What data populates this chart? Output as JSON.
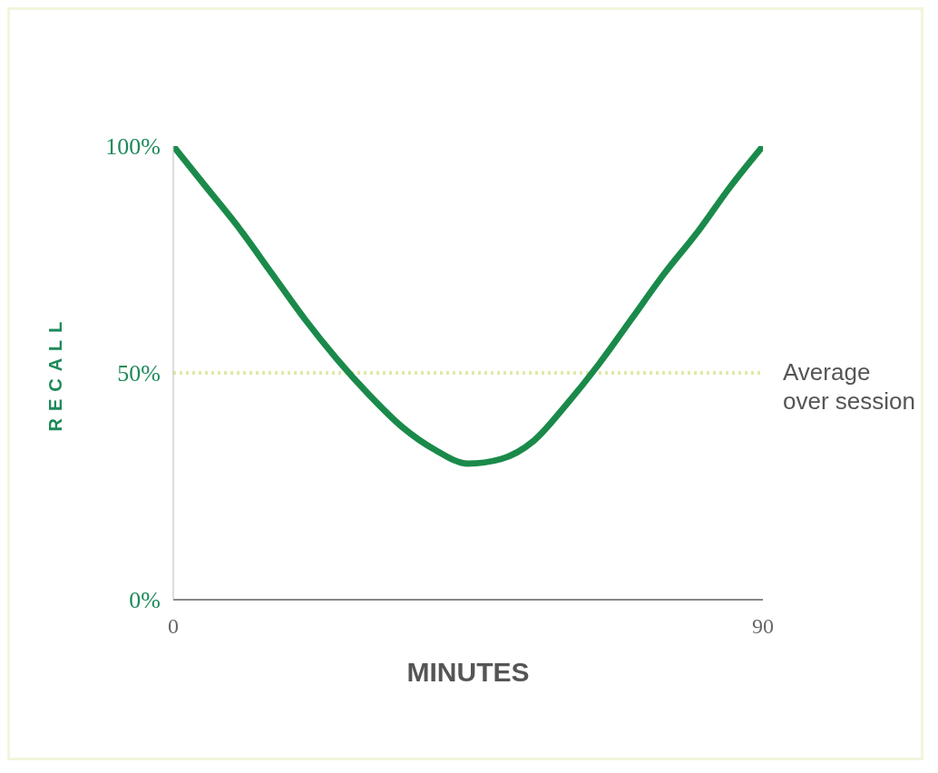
{
  "chart_data": {
    "type": "line",
    "xlabel": "MINUTES",
    "ylabel": "RECALL",
    "x": [
      0,
      5,
      10,
      15,
      20,
      25,
      30,
      35,
      40,
      45,
      50,
      55,
      60,
      65,
      70,
      75,
      80,
      85,
      90
    ],
    "series": [
      {
        "color": "#1a8a4a",
        "values": [
          100,
          91,
          82,
          72,
          62,
          53,
          45,
          38,
          33,
          30,
          31,
          35,
          43,
          52,
          62,
          72,
          81,
          91,
          100
        ]
      }
    ],
    "xlim": [
      0,
      90
    ],
    "xticks": [
      0,
      90
    ],
    "ylim": [
      0,
      100
    ],
    "yticks": [
      {
        "value": 0,
        "label": "0%"
      },
      {
        "value": 50,
        "label": "50%"
      },
      {
        "value": 100,
        "label": "100%"
      }
    ],
    "ref_lines": [
      {
        "axis": "y",
        "value": 50,
        "label": "Average over session",
        "color": "#dfe9a8",
        "line_style": "dotted"
      }
    ],
    "grid": false,
    "legend": false,
    "marker": "none",
    "line_style": "solid"
  }
}
